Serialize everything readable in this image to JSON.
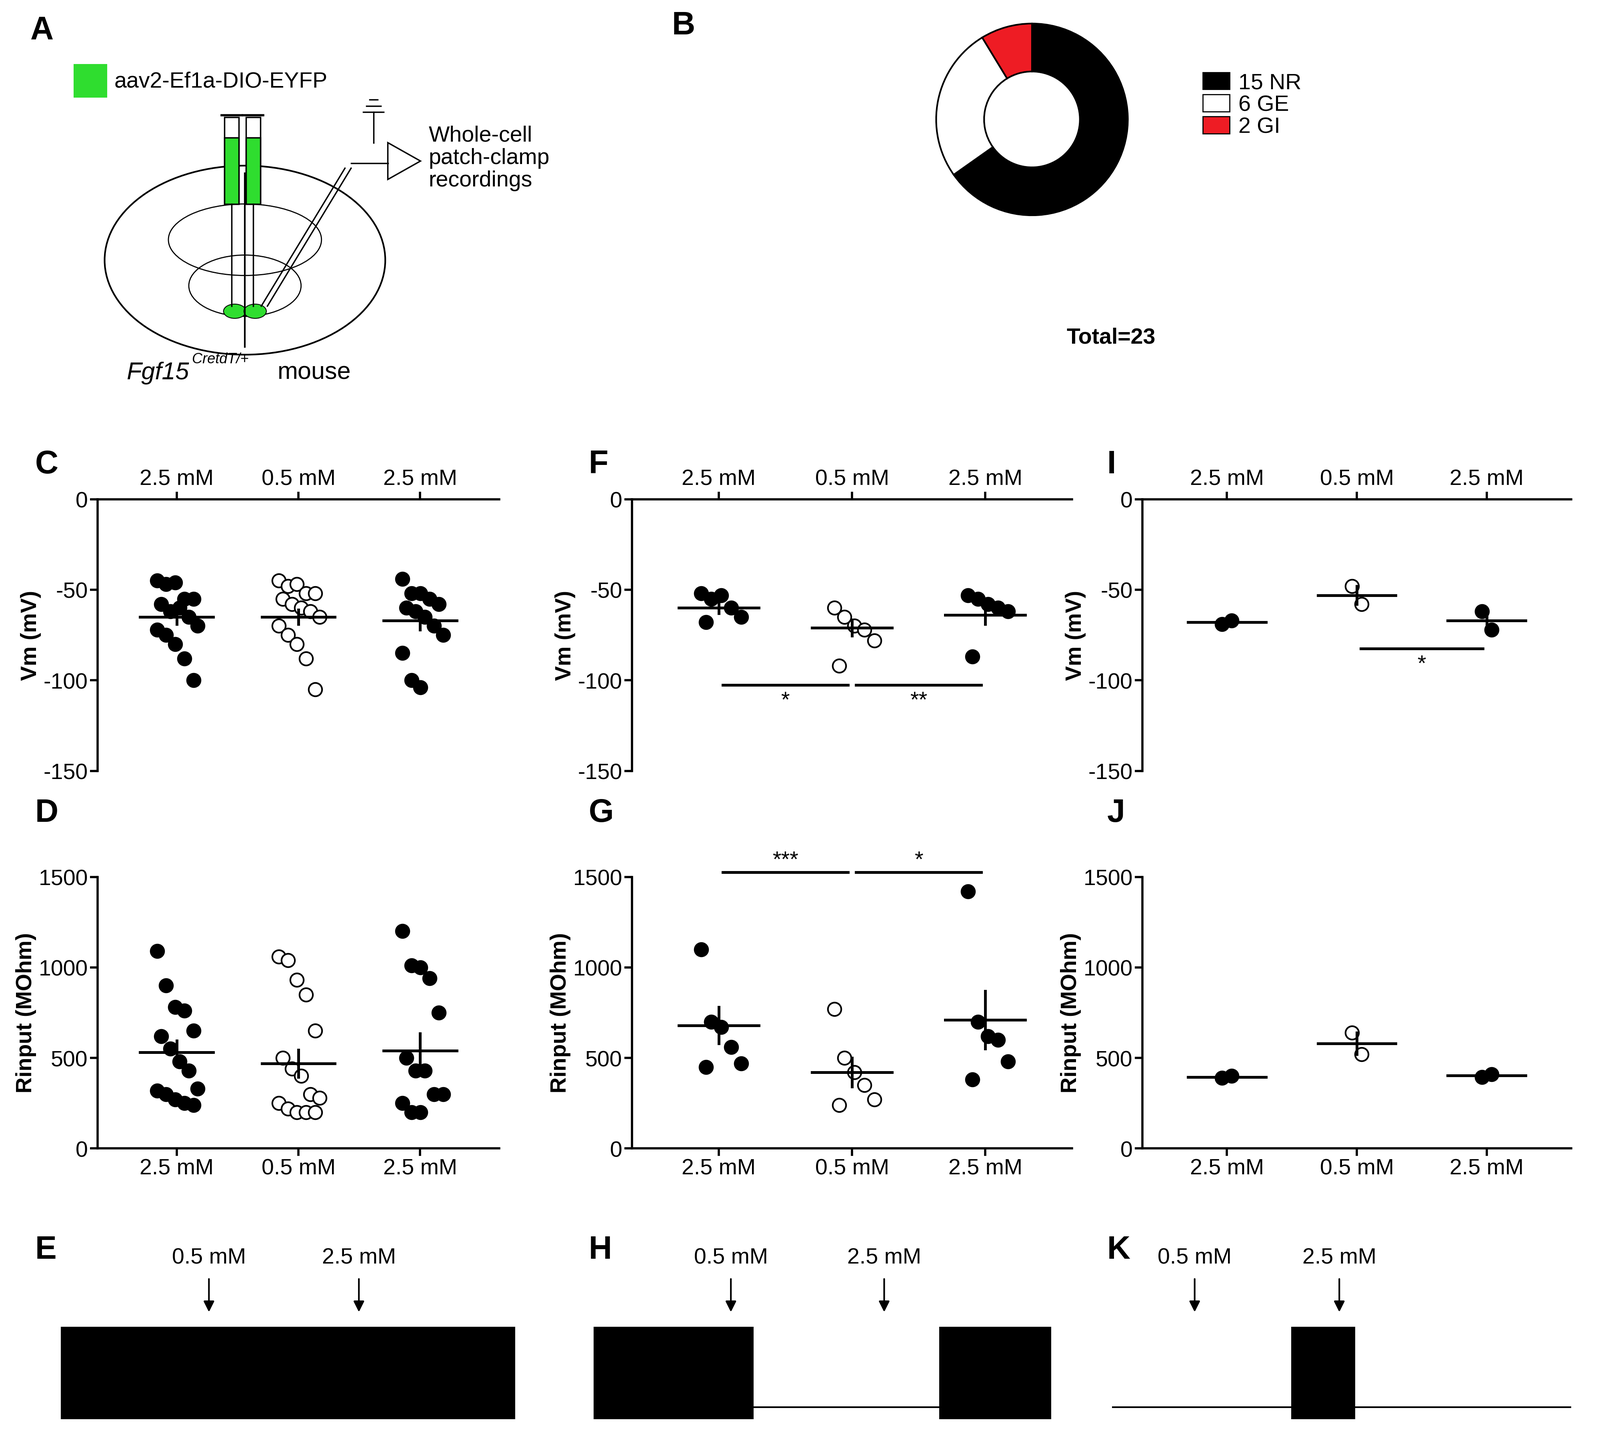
{
  "diagram": {
    "panel_label": "A",
    "virus_label": "aav2-Ef1a-DIO-EYFP",
    "recording_label": "Whole-cell\npatch-clamp\nrecordings",
    "mouse_label": "Fgf15",
    "mouse_superscript": "CretdT/+",
    "mouse_suffix": "mouse"
  },
  "chart_data": [
    {
      "panel_label": "B",
      "type": "pie",
      "categories": [
        "NR",
        "GE",
        "GI"
      ],
      "values": [
        15,
        6,
        2
      ],
      "colors": [
        "#000000",
        "#ffffff",
        "#ee1c24"
      ],
      "legend": "upper left",
      "annotation": "Total=23"
    },
    {
      "panel_label": "C",
      "type": "scatter",
      "ylabel": "Vm (mV)",
      "categories": [
        "2.5 mM",
        "0.5 mM",
        "2.5 mM"
      ],
      "values": [
        [
          -45,
          -47,
          -46,
          -55,
          -55,
          -58,
          -62,
          -60,
          -65,
          -70,
          -72,
          -75,
          -80,
          -88,
          -100
        ],
        [
          -45,
          -48,
          -47,
          -52,
          -52,
          -55,
          -58,
          -60,
          -62,
          -65,
          -70,
          -75,
          -80,
          -88,
          -105
        ],
        [
          -44,
          -52,
          -52,
          -55,
          -58,
          -60,
          -62,
          -65,
          -70,
          -75,
          -85,
          -100,
          -104
        ]
      ],
      "mean": [
        -65,
        -65,
        -67
      ],
      "sem": [
        4,
        4,
        5
      ],
      "colors": [
        "#000000",
        "#ffffff",
        "#000000"
      ],
      "ylim": [
        -150,
        0
      ],
      "yticks": [
        0,
        -50,
        -100,
        -150
      ],
      "significance": []
    },
    {
      "panel_label": "D",
      "type": "scatter",
      "ylabel": "Rinput (MOhm)",
      "categories": [
        "2.5 mM",
        "0.5 mM",
        "2.5 mM"
      ],
      "values": [
        [
          1090,
          900,
          780,
          760,
          650,
          620,
          550,
          480,
          430,
          330,
          320,
          300,
          270,
          250,
          240
        ],
        [
          1060,
          1040,
          930,
          850,
          650,
          500,
          440,
          400,
          300,
          280,
          250,
          220,
          200,
          200,
          200
        ],
        [
          1200,
          1010,
          1000,
          940,
          750,
          500,
          430,
          430,
          300,
          300,
          250,
          200,
          200
        ]
      ],
      "mean": [
        530,
        470,
        540
      ],
      "sem": [
        65,
        75,
        95
      ],
      "colors": [
        "#000000",
        "#ffffff",
        "#000000"
      ],
      "ylim": [
        0,
        1500
      ],
      "yticks": [
        0,
        500,
        1000,
        1500
      ],
      "significance": []
    },
    {
      "panel_label": "E",
      "type": "trace",
      "tick_labels": false,
      "events": [
        {
          "x": 0.326,
          "label": "0.5 mM"
        },
        {
          "x": 0.656,
          "label": "2.5 mM"
        }
      ],
      "firing": [
        [
          0,
          1
        ]
      ]
    },
    {
      "panel_label": "F",
      "type": "scatter",
      "ylabel": "Vm (mV)",
      "categories": [
        "2.5 mM",
        "0.5 mM",
        "2.5 mM"
      ],
      "values": [
        [
          -52,
          -55,
          -53,
          -60,
          -65,
          -68
        ],
        [
          -60,
          -65,
          -70,
          -72,
          -78,
          -92
        ],
        [
          -53,
          -55,
          -58,
          -60,
          -62,
          -87
        ]
      ],
      "mean": [
        -60,
        -71,
        -64
      ],
      "sem": [
        3,
        4.5,
        5
      ],
      "colors": [
        "#000000",
        "#ffffff",
        "#000000"
      ],
      "ylim": [
        -150,
        0
      ],
      "yticks": [
        0,
        -50,
        -100,
        -150
      ],
      "significance": [
        {
          "from": 0,
          "to": 1,
          "label": "*"
        },
        {
          "from": 1,
          "to": 2,
          "label": "**"
        }
      ]
    },
    {
      "panel_label": "G",
      "type": "scatter",
      "ylabel": "Rinput (MOhm)",
      "categories": [
        "2.5 mM",
        "0.5 mM",
        "2.5 mM"
      ],
      "values": [
        [
          1100,
          700,
          670,
          560,
          470,
          450
        ],
        [
          770,
          500,
          420,
          350,
          270,
          240
        ],
        [
          1420,
          700,
          620,
          600,
          480,
          380
        ]
      ],
      "mean": [
        680,
        420,
        710
      ],
      "sem": [
        100,
        80,
        160
      ],
      "colors": [
        "#000000",
        "#ffffff",
        "#000000"
      ],
      "ylim": [
        0,
        1500
      ],
      "yticks": [
        0,
        500,
        1000,
        1500
      ],
      "significance": [
        {
          "from": 0,
          "to": 1,
          "label": "***"
        },
        {
          "from": 1,
          "to": 2,
          "label": "*"
        }
      ]
    },
    {
      "panel_label": "H",
      "type": "trace",
      "tick_labels": false,
      "events": [
        {
          "x": 0.3,
          "label": "0.5 mM"
        },
        {
          "x": 0.635,
          "label": "2.5 mM"
        }
      ],
      "firing": [
        [
          0,
          0.35
        ],
        [
          0.755,
          1
        ]
      ]
    },
    {
      "panel_label": "I",
      "type": "scatter",
      "ylabel": "Vm (mV)",
      "categories": [
        "2.5 mM",
        "0.5 mM",
        "2.5 mM"
      ],
      "values": [
        [
          -69,
          -67
        ],
        [
          -48,
          -58
        ],
        [
          -62,
          -72
        ]
      ],
      "mean": [
        -68,
        -53,
        -67
      ],
      "sem": [
        1,
        5,
        5
      ],
      "colors": [
        "#000000",
        "#ffffff",
        "#000000"
      ],
      "ylim": [
        -150,
        0
      ],
      "yticks": [
        0,
        -50,
        -100,
        -150
      ],
      "significance": [
        {
          "from": 1,
          "to": 2,
          "label": "*"
        }
      ]
    },
    {
      "panel_label": "J",
      "type": "scatter",
      "ylabel": "Rinput (MOhm)",
      "categories": [
        "2.5 mM",
        "0.5 mM",
        "2.5 mM"
      ],
      "values": [
        [
          390,
          400
        ],
        [
          640,
          520
        ],
        [
          395,
          410
        ]
      ],
      "mean": [
        395,
        580,
        403
      ],
      "sem": [
        5,
        60,
        8
      ],
      "colors": [
        "#000000",
        "#ffffff",
        "#000000"
      ],
      "ylim": [
        0,
        1500
      ],
      "yticks": [
        0,
        500,
        1000,
        1500
      ],
      "significance": []
    },
    {
      "panel_label": "K",
      "type": "trace",
      "tick_labels": false,
      "events": [
        {
          "x": 0.18,
          "label": "0.5 mM"
        },
        {
          "x": 0.495,
          "label": "2.5 mM"
        }
      ],
      "firing": [
        [
          0.39,
          0.53
        ]
      ]
    }
  ]
}
